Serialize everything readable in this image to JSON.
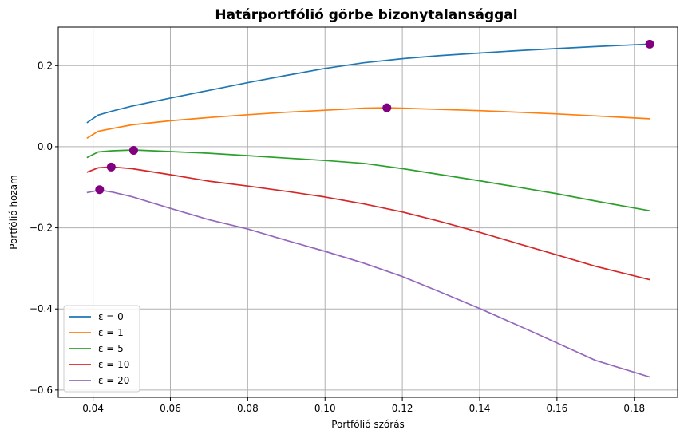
{
  "chart_data": {
    "type": "line",
    "title": "Határportfólió görbe bizonytalansággal",
    "xlabel": "Portfólió szórás",
    "ylabel": "Portfólió hozam",
    "xlim": [
      0.031,
      0.1912
    ],
    "ylim": [
      -0.618,
      0.295
    ],
    "xticks": [
      0.04,
      0.06,
      0.08,
      0.1,
      0.12,
      0.14,
      0.16,
      0.18
    ],
    "xtick_labels": [
      "0.04",
      "0.06",
      "0.08",
      "0.10",
      "0.12",
      "0.14",
      "0.16",
      "0.18"
    ],
    "yticks": [
      0.2,
      0.0,
      -0.2,
      -0.4,
      -0.6
    ],
    "ytick_labels": [
      "0.2",
      "0.0",
      "−0.2",
      "−0.4",
      "−0.6"
    ],
    "grid": true,
    "legend_position": "lower-left",
    "series": [
      {
        "name": "ε = 0",
        "color": "#1f77b4",
        "points": [
          [
            0.0384,
            0.059
          ],
          [
            0.0413,
            0.078
          ],
          [
            0.045,
            0.088
          ],
          [
            0.05,
            0.1
          ],
          [
            0.06,
            0.12
          ],
          [
            0.07,
            0.139
          ],
          [
            0.08,
            0.158
          ],
          [
            0.09,
            0.176
          ],
          [
            0.1,
            0.193
          ],
          [
            0.11,
            0.207
          ],
          [
            0.12,
            0.217
          ],
          [
            0.13,
            0.225
          ],
          [
            0.14,
            0.231
          ],
          [
            0.15,
            0.237
          ],
          [
            0.16,
            0.242
          ],
          [
            0.17,
            0.247
          ],
          [
            0.184,
            0.253
          ]
        ],
        "optimum": [
          0.184,
          0.253
        ]
      },
      {
        "name": "ε = 1",
        "color": "#ff7f0e",
        "points": [
          [
            0.0384,
            0.021
          ],
          [
            0.0413,
            0.038
          ],
          [
            0.045,
            0.045
          ],
          [
            0.05,
            0.054
          ],
          [
            0.06,
            0.064
          ],
          [
            0.07,
            0.072
          ],
          [
            0.08,
            0.079
          ],
          [
            0.09,
            0.085
          ],
          [
            0.1,
            0.09
          ],
          [
            0.11,
            0.095
          ],
          [
            0.116,
            0.096
          ],
          [
            0.12,
            0.095
          ],
          [
            0.13,
            0.092
          ],
          [
            0.14,
            0.089
          ],
          [
            0.15,
            0.085
          ],
          [
            0.16,
            0.081
          ],
          [
            0.17,
            0.076
          ],
          [
            0.184,
            0.069
          ]
        ],
        "optimum": [
          0.116,
          0.096
        ]
      },
      {
        "name": "ε = 5",
        "color": "#2ca02c",
        "points": [
          [
            0.0384,
            -0.027
          ],
          [
            0.0413,
            -0.013
          ],
          [
            0.045,
            -0.01
          ],
          [
            0.0505,
            -0.008
          ],
          [
            0.06,
            -0.012
          ],
          [
            0.07,
            -0.016
          ],
          [
            0.08,
            -0.022
          ],
          [
            0.09,
            -0.028
          ],
          [
            0.1,
            -0.034
          ],
          [
            0.11,
            -0.041
          ],
          [
            0.12,
            -0.054
          ],
          [
            0.13,
            -0.069
          ],
          [
            0.14,
            -0.084
          ],
          [
            0.15,
            -0.1
          ],
          [
            0.16,
            -0.116
          ],
          [
            0.17,
            -0.134
          ],
          [
            0.184,
            -0.158
          ]
        ],
        "optimum": [
          0.0505,
          -0.009
        ]
      },
      {
        "name": "ε = 10",
        "color": "#d62728",
        "points": [
          [
            0.0384,
            -0.063
          ],
          [
            0.0413,
            -0.052
          ],
          [
            0.0447,
            -0.05
          ],
          [
            0.05,
            -0.054
          ],
          [
            0.06,
            -0.069
          ],
          [
            0.07,
            -0.085
          ],
          [
            0.08,
            -0.097
          ],
          [
            0.09,
            -0.11
          ],
          [
            0.1,
            -0.124
          ],
          [
            0.11,
            -0.141
          ],
          [
            0.12,
            -0.161
          ],
          [
            0.13,
            -0.185
          ],
          [
            0.14,
            -0.211
          ],
          [
            0.15,
            -0.239
          ],
          [
            0.16,
            -0.267
          ],
          [
            0.17,
            -0.295
          ],
          [
            0.184,
            -0.328
          ]
        ],
        "optimum": [
          0.0447,
          -0.05
        ]
      },
      {
        "name": "ε = 20",
        "color": "#9467bd",
        "points": [
          [
            0.0384,
            -0.113
          ],
          [
            0.0417,
            -0.107
          ],
          [
            0.045,
            -0.112
          ],
          [
            0.05,
            -0.123
          ],
          [
            0.06,
            -0.152
          ],
          [
            0.07,
            -0.18
          ],
          [
            0.08,
            -0.203
          ],
          [
            0.09,
            -0.231
          ],
          [
            0.1,
            -0.258
          ],
          [
            0.11,
            -0.287
          ],
          [
            0.12,
            -0.32
          ],
          [
            0.13,
            -0.359
          ],
          [
            0.14,
            -0.399
          ],
          [
            0.15,
            -0.441
          ],
          [
            0.16,
            -0.484
          ],
          [
            0.17,
            -0.527
          ],
          [
            0.184,
            -0.568
          ]
        ],
        "optimum": [
          0.0417,
          -0.106
        ]
      }
    ],
    "optimum_marker_color": "#800080"
  }
}
